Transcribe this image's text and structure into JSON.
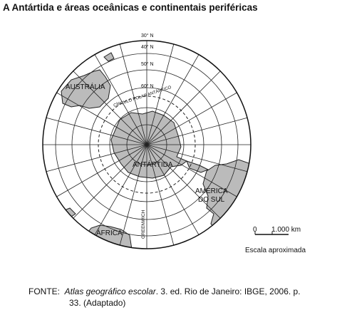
{
  "title": "A Antártida e áreas oceânicas e continentais periféricas",
  "map": {
    "parallels": [
      "30° N",
      "40° N",
      "50° N",
      "60° N"
    ],
    "polar_circle": "CÍRCULO POLAR ANTÁRTICO",
    "regions": [
      "AUSTRÁLIA",
      "ANTÁRTIDA",
      "AMÉRICA",
      "DO SUL",
      "ÁFRICA"
    ],
    "meridian": "GREENWICH"
  },
  "scale": {
    "zero": "0",
    "distance": "1.000 km",
    "caption": "Escala aproximada"
  },
  "source": {
    "label": "FONTE:",
    "book": "Atlas geográfico escolar",
    "details": ". 3. ed. Rio de Janeiro: IBGE, 2006. p.",
    "details2": "33. (Adaptado)"
  }
}
